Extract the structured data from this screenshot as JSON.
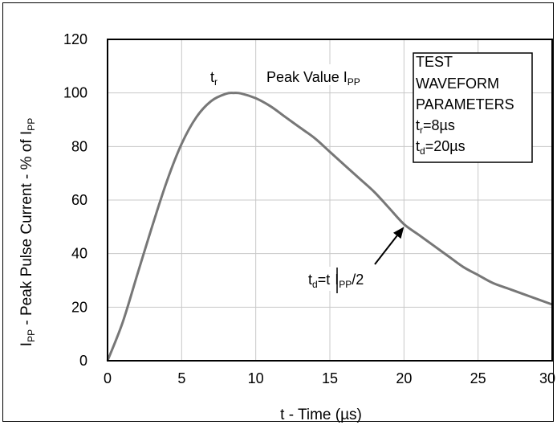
{
  "chart_data": {
    "type": "line",
    "xlabel": "t - Time (µs)",
    "ylabel_parts": [
      "I",
      "PP",
      " - Peak Pulse Current - % of I",
      "PP"
    ],
    "xlim": [
      0,
      30
    ],
    "ylim": [
      0,
      120
    ],
    "x_ticks": [
      0,
      5,
      10,
      15,
      20,
      25,
      30
    ],
    "y_ticks": [
      0,
      20,
      40,
      60,
      80,
      100,
      120
    ],
    "grid": true,
    "series": [
      {
        "color": "#777777",
        "x": [
          0,
          1,
          2,
          3,
          4,
          5,
          6,
          7,
          8,
          8.5,
          9,
          10,
          11,
          12,
          13,
          14,
          15,
          16,
          17,
          18,
          19,
          20,
          21,
          22,
          23,
          24,
          25,
          26,
          27,
          28,
          29,
          30
        ],
        "y": [
          0,
          14,
          32,
          50,
          67,
          81,
          91,
          97,
          99.7,
          100,
          99.8,
          98,
          95,
          91,
          87,
          83,
          78,
          73,
          68,
          63,
          57,
          51,
          47,
          43,
          39,
          35,
          32,
          29,
          27,
          25,
          23,
          21
        ]
      }
    ],
    "annotations": {
      "tr": {
        "main": "t",
        "sub": "r"
      },
      "peak": {
        "main": "Peak Value I",
        "sub": "PP"
      },
      "td": {
        "t1": "t",
        "s1": "d",
        "t2": "=t",
        "t3": "I",
        "s3": "PP",
        "t4": "/2"
      },
      "arrow_target": {
        "x": 20,
        "y": 50
      }
    },
    "legend_box": {
      "line1": "TEST",
      "line2": "WAVEFORM",
      "line3": "PARAMETERS",
      "line4": {
        "main": "t",
        "sub": "r",
        "rest": "=8µs"
      },
      "line5": {
        "main": "t",
        "sub": "d",
        "rest": "=20µs"
      }
    }
  }
}
